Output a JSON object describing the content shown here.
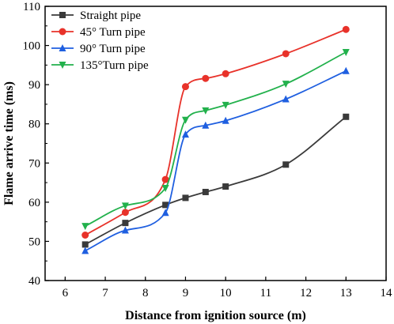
{
  "chart_data": {
    "type": "line",
    "title": "",
    "xlabel": "Distance from ignition source (m)",
    "ylabel": "Flame arrive time (ms)",
    "xlim": [
      5.5,
      14
    ],
    "ylim": [
      40,
      110
    ],
    "xticks": [
      6,
      7,
      8,
      9,
      10,
      11,
      12,
      13,
      14
    ],
    "yticks": [
      40,
      50,
      60,
      70,
      80,
      90,
      100,
      110
    ],
    "grid": false,
    "legend_position": "top-left",
    "series": [
      {
        "name": "Straight pipe",
        "color": "#3a3a3a",
        "marker": "square",
        "x": [
          6.5,
          7.5,
          8.5,
          9,
          9.5,
          10,
          11.5,
          13
        ],
        "y": [
          49.2,
          54.7,
          59.3,
          61.1,
          62.6,
          64.0,
          69.6,
          81.8
        ]
      },
      {
        "name": "45° Turn pipe",
        "color": "#e8322a",
        "marker": "circle",
        "x": [
          6.5,
          7.5,
          8.5,
          9,
          9.5,
          10,
          11.5,
          13
        ],
        "y": [
          51.6,
          57.4,
          65.8,
          89.5,
          91.6,
          92.8,
          97.9,
          104.1
        ]
      },
      {
        "name": "90° Turn pipe",
        "color": "#1f5fe0",
        "marker": "triangle-up",
        "x": [
          6.5,
          7.5,
          8.5,
          9,
          9.5,
          10,
          11.5,
          13
        ],
        "y": [
          47.6,
          52.8,
          57.3,
          77.3,
          79.6,
          80.8,
          86.3,
          93.5
        ]
      },
      {
        "name": "135°Turn pipe",
        "color": "#22b14c",
        "marker": "triangle-down",
        "x": [
          6.5,
          7.5,
          8.5,
          9,
          9.5,
          10,
          11.5,
          13
        ],
        "y": [
          53.9,
          59.1,
          63.6,
          81.0,
          83.4,
          84.8,
          90.2,
          98.3
        ]
      }
    ]
  }
}
